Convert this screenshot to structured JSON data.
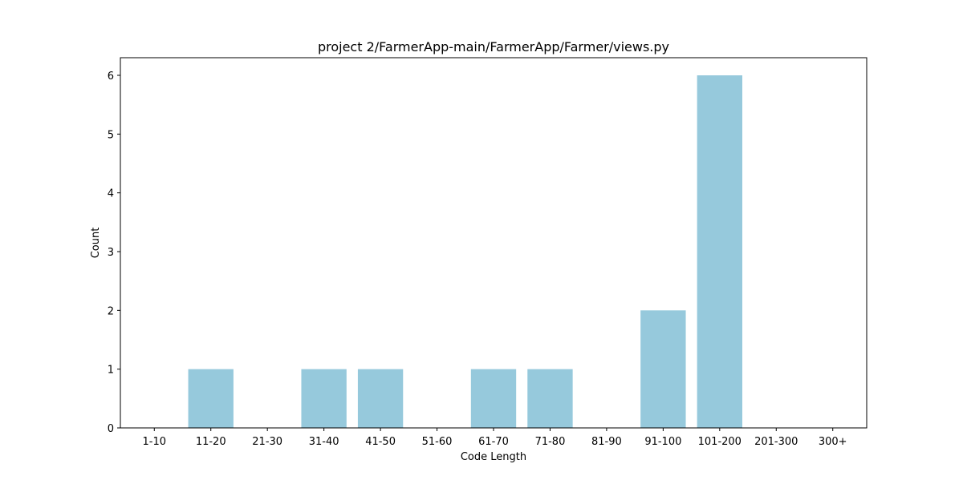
{
  "chart_data": {
    "type": "bar",
    "title": "project 2/FarmerApp-main/FarmerApp/Farmer/views.py",
    "xlabel": "Code Length",
    "ylabel": "Count",
    "categories": [
      "1-10",
      "11-20",
      "21-30",
      "31-40",
      "41-50",
      "51-60",
      "61-70",
      "71-80",
      "81-90",
      "91-100",
      "101-200",
      "201-300",
      "300+"
    ],
    "values": [
      0,
      1,
      0,
      1,
      1,
      0,
      1,
      1,
      0,
      2,
      6,
      0,
      0
    ],
    "ylim": [
      0,
      6.3
    ],
    "yticks": [
      "0",
      "1",
      "2",
      "3",
      "4",
      "5",
      "6"
    ],
    "grid": false,
    "bar_color": "#96c9dc"
  }
}
